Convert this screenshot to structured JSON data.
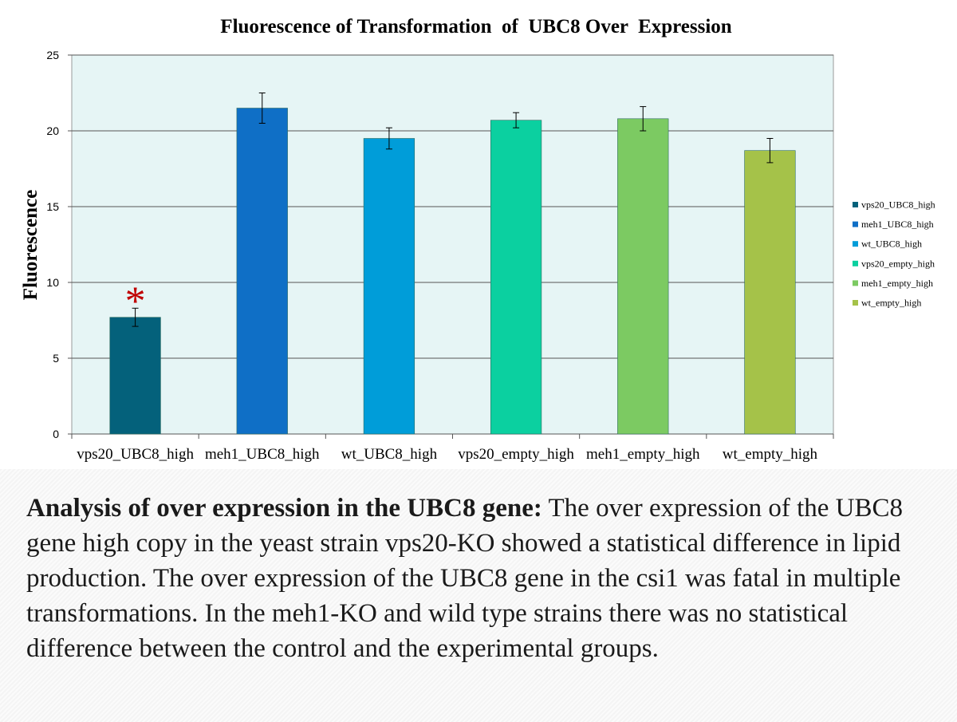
{
  "chart_data": {
    "type": "bar",
    "title": "Fluorescence of Transformation  of  UBC8 Over  Expression",
    "xlabel": "",
    "ylabel": "Fluorescence",
    "ylim": [
      0,
      25
    ],
    "yticks": [
      0,
      5,
      10,
      15,
      20,
      25
    ],
    "grid": true,
    "legend_position": "right",
    "categories": [
      "vps20_UBC8_high",
      "meh1_UBC8_high",
      "wt_UBC8_high",
      "vps20_empty_high",
      "meh1_empty_high",
      "wt_empty_high"
    ],
    "values": [
      7.7,
      21.5,
      19.5,
      20.7,
      20.8,
      18.7
    ],
    "error": [
      0.6,
      1.0,
      0.7,
      0.5,
      0.8,
      0.8
    ],
    "colors": [
      "#04617B",
      "#0F6FC6",
      "#009DD9",
      "#0BD0A0",
      "#7CCA62",
      "#A5C249"
    ],
    "annotations": [
      {
        "text": "*",
        "category": "vps20_UBC8_high",
        "color": "#C00000"
      }
    ],
    "plot_background": "#E6F5F5"
  },
  "caption": {
    "bold": "Analysis of over expression in the UBC8 gene:",
    "text": " The over expression of the UBC8 gene high copy in the yeast strain vps20-KO showed a statistical difference in lipid production. The over expression of the UBC8 gene in the csi1 was fatal in multiple transformations. In the meh1-KO and wild type strains there was no statistical difference between the control and the experimental groups."
  }
}
